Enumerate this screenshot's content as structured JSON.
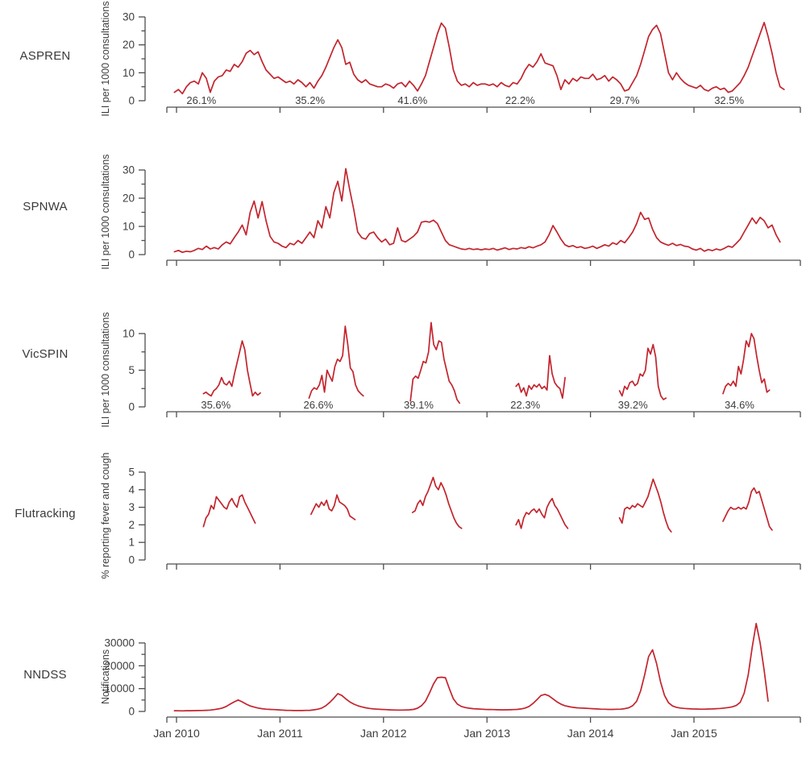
{
  "chart_data": {
    "type": "line",
    "title": "",
    "layout": "5 vertically stacked time-series panels sharing one x axis (weekly influenza surveillance, Australia)",
    "line_color": "#c3242d",
    "axis_color": "#4d4d4f",
    "text_color": "#3d3d3d",
    "x_axis": {
      "range": [
        2009.91,
        2016.03
      ],
      "tick_years": [
        2010,
        2011,
        2012,
        2013,
        2014,
        2015
      ],
      "tick_labels": [
        "Jan 2010",
        "Jan 2011",
        "Jan 2012",
        "Jan 2013",
        "Jan 2014",
        "Jan 2015"
      ]
    },
    "panels": [
      {
        "label": "ASPREN",
        "ylabel": "ILI per 1000 consultations",
        "axis_max": 30,
        "yticks": [
          0,
          10,
          20,
          30
        ],
        "minor_yticks": [
          5,
          15,
          25
        ],
        "percent_labels": [
          {
            "x": 2010.24,
            "text": "26.1%"
          },
          {
            "x": 2011.29,
            "text": "35.2%"
          },
          {
            "x": 2012.28,
            "text": "41.6%"
          },
          {
            "x": 2013.32,
            "text": "22.2%"
          },
          {
            "x": 2014.33,
            "text": "29.7%"
          },
          {
            "x": 2015.34,
            "text": "32.5%"
          }
        ],
        "series": [
          {
            "x0": 2009.98,
            "dx": 0.0385,
            "values": [
              3,
              4,
              2.5,
              5,
              6.5,
              7,
              6,
              10,
              8,
              3,
              7,
              8.5,
              9,
              11,
              10.5,
              13,
              12,
              14,
              17,
              18,
              16.5,
              17.5,
              14,
              11,
              9.5,
              8,
              8.5,
              7.5,
              6.5,
              7,
              6,
              7.5,
              6.5,
              5,
              6.5,
              4.5,
              7,
              9,
              12,
              15.5,
              19,
              21.8,
              19,
              13,
              13.8,
              9.5,
              7.5,
              6.5,
              7.5,
              6,
              5.5,
              5,
              5,
              6,
              5.5,
              4.5,
              6,
              6.5,
              5,
              7,
              5.5,
              3.5,
              6,
              9,
              14,
              19,
              24,
              27.8,
              26,
              19,
              11,
              7,
              5.5,
              6,
              5,
              6.5,
              5.5,
              6,
              6,
              5.5,
              6,
              5,
              6.5,
              5.5,
              5,
              6.5,
              6,
              8,
              11,
              13,
              12,
              14,
              16.8,
              13.5,
              13,
              12.5,
              9,
              4,
              7.5,
              6,
              8,
              7,
              8.5,
              8,
              8,
              9.5,
              7.5,
              8,
              9,
              7,
              8.5,
              7.5,
              6,
              3.5,
              4,
              6.5,
              9,
              13,
              18,
              23,
              25.5,
              27,
              24,
              17,
              10,
              7.5,
              10,
              8,
              6.5,
              5.5,
              5,
              4.5,
              5.5,
              4,
              3.5,
              4.5,
              5,
              4,
              4.5,
              3,
              3.5,
              5,
              6.5,
              9,
              12,
              16,
              20,
              24,
              28,
              23,
              17,
              10,
              5,
              4
            ]
          }
        ]
      },
      {
        "label": "SPNWA",
        "ylabel": "ILI per 1000 consultations",
        "axis_max": 30,
        "yticks": [
          0,
          10,
          20,
          30
        ],
        "minor_yticks": [
          5,
          15,
          25
        ],
        "percent_labels": [],
        "series": [
          {
            "x0": 2009.98,
            "dx": 0.0385,
            "values": [
              1,
              1.5,
              0.8,
              1.2,
              1,
              1.5,
              2.2,
              1.8,
              3,
              2,
              2.5,
              2,
              3.5,
              4.5,
              3.8,
              6,
              8,
              10.5,
              7,
              15,
              19,
              13,
              18.8,
              12,
              6.5,
              4.5,
              4,
              3,
              2.5,
              4,
              3.5,
              5,
              4,
              6,
              8,
              6,
              12,
              9.5,
              17,
              13,
              22,
              26,
              19,
              30.5,
              23,
              16,
              8,
              6,
              5.5,
              7.5,
              8,
              6,
              4.5,
              5.5,
              3.5,
              4,
              9.5,
              5,
              4.5,
              5.5,
              6.5,
              8,
              11.5,
              11.8,
              11.5,
              12.2,
              11,
              8,
              5,
              3.5,
              3,
              2.5,
              2,
              1.8,
              2.2,
              1.8,
              2,
              1.7,
              2,
              1.8,
              2.2,
              1.6,
              2,
              2.4,
              1.8,
              2.2,
              2,
              2.5,
              2.2,
              2.8,
              2.4,
              3,
              3.5,
              4.5,
              7,
              10.3,
              8,
              5.5,
              3.5,
              2.8,
              3.2,
              2.5,
              2.8,
              2.2,
              2.5,
              3,
              2.2,
              2.8,
              3.5,
              3,
              4.2,
              3.6,
              5,
              4.2,
              6,
              8,
              11,
              15,
              12.5,
              13,
              9,
              6,
              4.5,
              3.8,
              3.3,
              4,
              3.2,
              3.6,
              3,
              2.8,
              2,
              1.6,
              2.2,
              1.2,
              1.8,
              1.4,
              2,
              1.6,
              2.2,
              3,
              2.6,
              4,
              5.5,
              8,
              10.5,
              13,
              11,
              13.2,
              12,
              9.5,
              10.5,
              7,
              4.5
            ]
          }
        ]
      },
      {
        "label": "VicSPIN",
        "ylabel": "ILI per 1000 consultations",
        "axis_max": 10,
        "yticks": [
          0,
          5,
          10
        ],
        "minor_yticks": [
          2.5,
          7.5
        ],
        "percent_labels": [
          {
            "x": 2010.38,
            "text": "35.6%"
          },
          {
            "x": 2011.37,
            "text": "26.6%"
          },
          {
            "x": 2012.34,
            "text": "39.1%"
          },
          {
            "x": 2013.37,
            "text": "22.3%"
          },
          {
            "x": 2014.41,
            "text": "39.2%"
          },
          {
            "x": 2015.44,
            "text": "34.6%"
          }
        ],
        "series": [
          {
            "x0": 2010.26,
            "dx": 0.025,
            "values": [
              1.8,
              2,
              1.7,
              1.5,
              2.2,
              2.5,
              3,
              4,
              3.2,
              3,
              3.5,
              2.8,
              4.5,
              6,
              7.5,
              9,
              7.8,
              5,
              3.2,
              1.5,
              2,
              1.6,
              1.9
            ]
          },
          {
            "x0": 2011.28,
            "dx": 0.025,
            "values": [
              1.2,
              2.2,
              2.6,
              2.4,
              3,
              4.3,
              2,
              5,
              4.2,
              3.5,
              5.5,
              6.5,
              6.2,
              7,
              11,
              8.5,
              5.3,
              4.8,
              3,
              2.2,
              1.8,
              1.5
            ]
          },
          {
            "x0": 2012.26,
            "dx": 0.025,
            "values": [
              0.8,
              3.8,
              4.2,
              3.9,
              5,
              6.2,
              6,
              7.5,
              11.5,
              8.5,
              7.8,
              9,
              8.8,
              6.5,
              5,
              3.5,
              3,
              2.2,
              1,
              0.5
            ]
          },
          {
            "x0": 2013.28,
            "dx": 0.025,
            "values": [
              2.8,
              3.2,
              2,
              2.6,
              1.5,
              2.9,
              2.4,
              3,
              2.7,
              3.1,
              2.5,
              2.8,
              2.3,
              7,
              4.5,
              3.3,
              2.8,
              2.5,
              1.2,
              4
            ]
          },
          {
            "x0": 2014.28,
            "dx": 0.025,
            "values": [
              2.2,
              1.5,
              2.8,
              2.4,
              3.3,
              3.5,
              2.9,
              3.2,
              4.5,
              4.2,
              5,
              8,
              7.2,
              8.5,
              6.8,
              2.8,
              1.5,
              1,
              1.2
            ]
          },
          {
            "x0": 2015.28,
            "dx": 0.025,
            "values": [
              1.8,
              2.8,
              3.2,
              2.9,
              3.5,
              2.8,
              5.5,
              4.5,
              6.5,
              9,
              8.2,
              10,
              9.3,
              7,
              5,
              3.3,
              3.8,
              2,
              2.3
            ]
          }
        ]
      },
      {
        "label": "Flutracking",
        "ylabel": "% reporting fever and cough",
        "axis_max": 5,
        "yticks": [
          0,
          1,
          2,
          3,
          4,
          5
        ],
        "minor_yticks": [],
        "percent_labels": [],
        "series": [
          {
            "x0": 2010.26,
            "dx": 0.025,
            "values": [
              1.9,
              2.4,
              2.6,
              3.1,
              2.9,
              3.6,
              3.4,
              3.2,
              3,
              2.9,
              3.3,
              3.5,
              3.2,
              3,
              3.6,
              3.7,
              3.3,
              3,
              2.7,
              2.4,
              2.1
            ]
          },
          {
            "x0": 2011.3,
            "dx": 0.025,
            "values": [
              2.6,
              2.9,
              3.2,
              3,
              3.3,
              3.1,
              3.4,
              2.9,
              2.8,
              3.1,
              3.7,
              3.3,
              3.2,
              3.1,
              2.9,
              2.5,
              2.4,
              2.3
            ]
          },
          {
            "x0": 2012.28,
            "dx": 0.025,
            "values": [
              2.7,
              2.8,
              3.2,
              3.4,
              3.1,
              3.6,
              3.9,
              4.3,
              4.7,
              4.2,
              4,
              4.4,
              4.1,
              3.7,
              3.2,
              2.8,
              2.4,
              2.1,
              1.9,
              1.8
            ]
          },
          {
            "x0": 2013.28,
            "dx": 0.025,
            "values": [
              2,
              2.3,
              1.8,
              2.4,
              2.7,
              2.6,
              2.8,
              2.9,
              2.7,
              2.9,
              2.6,
              2.4,
              3,
              3.3,
              3.5,
              3.1,
              2.9,
              2.6,
              2.3,
              2,
              1.8
            ]
          },
          {
            "x0": 2014.28,
            "dx": 0.025,
            "values": [
              2.4,
              2.1,
              2.9,
              3,
              2.9,
              3.1,
              3,
              3.2,
              3.1,
              3,
              3.3,
              3.6,
              4.1,
              4.6,
              4.2,
              3.8,
              3.3,
              2.7,
              2.2,
              1.8,
              1.6
            ]
          },
          {
            "x0": 2015.28,
            "dx": 0.025,
            "values": [
              2.2,
              2.5,
              2.8,
              3,
              2.9,
              2.9,
              3,
              2.9,
              3,
              2.9,
              3.3,
              3.9,
              4.1,
              3.8,
              3.9,
              3.4,
              2.9,
              2.4,
              1.9,
              1.7
            ]
          }
        ]
      },
      {
        "label": "NNDSS",
        "ylabel": "Notifications",
        "axis_max": 30000,
        "yticks": [
          0,
          10000,
          20000,
          30000
        ],
        "minor_yticks": [
          5000,
          15000,
          25000
        ],
        "percent_labels": [],
        "series": [
          {
            "x0": 2009.98,
            "dx": 0.0385,
            "values": [
              300,
              280,
              260,
              300,
              320,
              350,
              380,
              420,
              500,
              600,
              800,
              1100,
              1500,
              2200,
              3200,
              4200,
              5000,
              4200,
              3200,
              2400,
              1900,
              1500,
              1200,
              1000,
              900,
              800,
              700,
              600,
              500,
              450,
              400,
              380,
              400,
              450,
              500,
              700,
              1000,
              1500,
              2500,
              4000,
              5800,
              7800,
              7000,
              5500,
              4200,
              3200,
              2500,
              2000,
              1600,
              1300,
              1100,
              1000,
              900,
              800,
              700,
              650,
              600,
              600,
              650,
              700,
              900,
              1400,
              2500,
              4500,
              8000,
              12000,
              14800,
              15000,
              14800,
              10000,
              5500,
              3200,
              2200,
              1700,
              1400,
              1200,
              1100,
              1000,
              900,
              850,
              800,
              750,
              700,
              700,
              750,
              800,
              900,
              1100,
              1500,
              2200,
              3500,
              5200,
              7000,
              7500,
              6800,
              5500,
              4200,
              3200,
              2500,
              2100,
              1800,
              1600,
              1500,
              1400,
              1300,
              1200,
              1100,
              1000,
              950,
              900,
              900,
              950,
              1000,
              1200,
              1600,
              2500,
              4500,
              9000,
              16000,
              24000,
              27000,
              21000,
              13000,
              7000,
              3800,
              2400,
              1800,
              1500,
              1300,
              1200,
              1100,
              1050,
              1000,
              1000,
              1050,
              1100,
              1200,
              1300,
              1500,
              1700,
              2000,
              2600,
              4000,
              8000,
              16000,
              28000,
              38500,
              30000,
              18000,
              4500
            ]
          }
        ]
      }
    ]
  }
}
